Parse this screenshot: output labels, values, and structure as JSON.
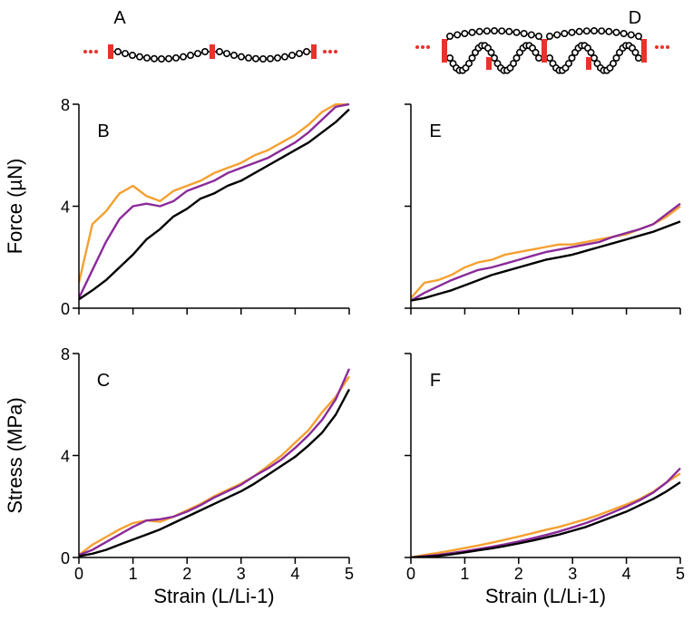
{
  "schematics": [
    {
      "label": "A"
    },
    {
      "label": "D"
    }
  ],
  "chart_data": [
    {
      "type": "line",
      "label": "B",
      "ylabel": "Force (µN)",
      "x": [
        0,
        0.25,
        0.5,
        0.75,
        1,
        1.25,
        1.5,
        1.75,
        2,
        2.25,
        2.5,
        2.75,
        3,
        3.25,
        3.5,
        3.75,
        4,
        4.25,
        4.5,
        4.75,
        5
      ],
      "series": [
        {
          "color": "#f5a030",
          "values": [
            1.0,
            3.3,
            3.8,
            4.5,
            4.8,
            4.4,
            4.2,
            4.6,
            4.8,
            5.0,
            5.3,
            5.5,
            5.7,
            6.0,
            6.2,
            6.5,
            6.8,
            7.2,
            7.7,
            8.0,
            8.0
          ]
        },
        {
          "color": "#8b2a9a",
          "values": [
            0.4,
            1.5,
            2.6,
            3.5,
            4.0,
            4.1,
            4.0,
            4.2,
            4.6,
            4.8,
            5.0,
            5.3,
            5.5,
            5.7,
            5.9,
            6.2,
            6.5,
            6.9,
            7.4,
            7.9,
            8.0
          ]
        },
        {
          "color": "#000000",
          "values": [
            0.35,
            0.7,
            1.1,
            1.6,
            2.1,
            2.7,
            3.1,
            3.6,
            3.9,
            4.3,
            4.5,
            4.8,
            5.0,
            5.3,
            5.6,
            5.9,
            6.2,
            6.5,
            6.9,
            7.3,
            7.8
          ]
        }
      ],
      "xlim": [
        0,
        5
      ],
      "ylim": [
        0,
        8
      ],
      "xticks": [
        0,
        1,
        2,
        3,
        4,
        5
      ],
      "yticks": [
        0,
        4,
        8
      ],
      "show_xtick_labels": false,
      "show_ytick_labels": true
    },
    {
      "type": "line",
      "label": "E",
      "x": [
        0,
        0.25,
        0.5,
        0.75,
        1,
        1.25,
        1.5,
        1.75,
        2,
        2.25,
        2.5,
        2.75,
        3,
        3.25,
        3.5,
        3.75,
        4,
        4.25,
        4.5,
        4.75,
        5
      ],
      "series": [
        {
          "color": "#f5a030",
          "values": [
            0.4,
            1.0,
            1.1,
            1.3,
            1.6,
            1.8,
            1.9,
            2.1,
            2.2,
            2.3,
            2.4,
            2.5,
            2.5,
            2.6,
            2.7,
            2.8,
            2.9,
            3.1,
            3.3,
            3.6,
            4.0
          ]
        },
        {
          "color": "#8b2a9a",
          "values": [
            0.3,
            0.6,
            0.85,
            1.1,
            1.3,
            1.5,
            1.6,
            1.75,
            1.9,
            2.05,
            2.2,
            2.3,
            2.4,
            2.5,
            2.6,
            2.8,
            2.95,
            3.1,
            3.3,
            3.7,
            4.1
          ]
        },
        {
          "color": "#000000",
          "values": [
            0.3,
            0.4,
            0.55,
            0.7,
            0.9,
            1.1,
            1.3,
            1.45,
            1.6,
            1.75,
            1.9,
            2.0,
            2.1,
            2.25,
            2.4,
            2.55,
            2.7,
            2.85,
            3.0,
            3.2,
            3.4
          ]
        }
      ],
      "xlim": [
        0,
        5
      ],
      "ylim": [
        0,
        8
      ],
      "xticks": [
        0,
        1,
        2,
        3,
        4,
        5
      ],
      "yticks": [
        0,
        4,
        8
      ],
      "show_xtick_labels": false,
      "show_ytick_labels": false
    },
    {
      "type": "line",
      "label": "C",
      "ylabel": "Stress (MPa)",
      "xlabel": "Strain (L/Li-1)",
      "x": [
        0,
        0.25,
        0.5,
        0.75,
        1,
        1.25,
        1.5,
        1.75,
        2,
        2.25,
        2.5,
        2.75,
        3,
        3.25,
        3.5,
        3.75,
        4,
        4.25,
        4.5,
        4.75,
        5
      ],
      "series": [
        {
          "color": "#f5a030",
          "values": [
            0.1,
            0.5,
            0.8,
            1.1,
            1.35,
            1.45,
            1.4,
            1.6,
            1.85,
            2.1,
            2.4,
            2.65,
            2.9,
            3.2,
            3.6,
            4.0,
            4.5,
            5.0,
            5.7,
            6.3,
            7.1
          ]
        },
        {
          "color": "#8b2a9a",
          "values": [
            0.1,
            0.3,
            0.6,
            0.9,
            1.2,
            1.45,
            1.5,
            1.6,
            1.8,
            2.05,
            2.35,
            2.6,
            2.85,
            3.2,
            3.5,
            3.85,
            4.3,
            4.8,
            5.4,
            6.2,
            7.4
          ]
        },
        {
          "color": "#000000",
          "values": [
            0.05,
            0.15,
            0.3,
            0.5,
            0.7,
            0.9,
            1.1,
            1.35,
            1.6,
            1.85,
            2.1,
            2.35,
            2.6,
            2.9,
            3.25,
            3.6,
            3.95,
            4.4,
            4.9,
            5.6,
            6.6
          ]
        }
      ],
      "xlim": [
        0,
        5
      ],
      "ylim": [
        0,
        8
      ],
      "xticks": [
        0,
        1,
        2,
        3,
        4,
        5
      ],
      "yticks": [
        0,
        4,
        8
      ],
      "show_xtick_labels": true,
      "show_ytick_labels": true
    },
    {
      "type": "line",
      "label": "F",
      "xlabel": "Strain (L/Li-1)",
      "x": [
        0,
        0.25,
        0.5,
        0.75,
        1,
        1.25,
        1.5,
        1.75,
        2,
        2.25,
        2.5,
        2.75,
        3,
        3.25,
        3.5,
        3.75,
        4,
        4.25,
        4.5,
        4.75,
        5
      ],
      "series": [
        {
          "color": "#f5a030",
          "values": [
            0.0,
            0.1,
            0.18,
            0.27,
            0.37,
            0.47,
            0.58,
            0.7,
            0.82,
            0.95,
            1.08,
            1.2,
            1.35,
            1.5,
            1.68,
            1.88,
            2.08,
            2.3,
            2.58,
            2.95,
            3.3
          ]
        },
        {
          "color": "#8b2a9a",
          "values": [
            0.0,
            0.05,
            0.1,
            0.17,
            0.25,
            0.33,
            0.42,
            0.52,
            0.63,
            0.75,
            0.88,
            1.02,
            1.18,
            1.35,
            1.55,
            1.77,
            2.0,
            2.25,
            2.55,
            2.95,
            3.5
          ]
        },
        {
          "color": "#000000",
          "values": [
            0.0,
            0.03,
            0.06,
            0.12,
            0.2,
            0.28,
            0.36,
            0.45,
            0.55,
            0.66,
            0.78,
            0.9,
            1.05,
            1.2,
            1.4,
            1.6,
            1.8,
            2.05,
            2.3,
            2.6,
            2.95
          ]
        }
      ],
      "xlim": [
        0,
        5
      ],
      "ylim": [
        0,
        8
      ],
      "xticks": [
        0,
        1,
        2,
        3,
        4,
        5
      ],
      "yticks": [
        0,
        4,
        8
      ],
      "show_xtick_labels": true,
      "show_ytick_labels": false
    }
  ]
}
